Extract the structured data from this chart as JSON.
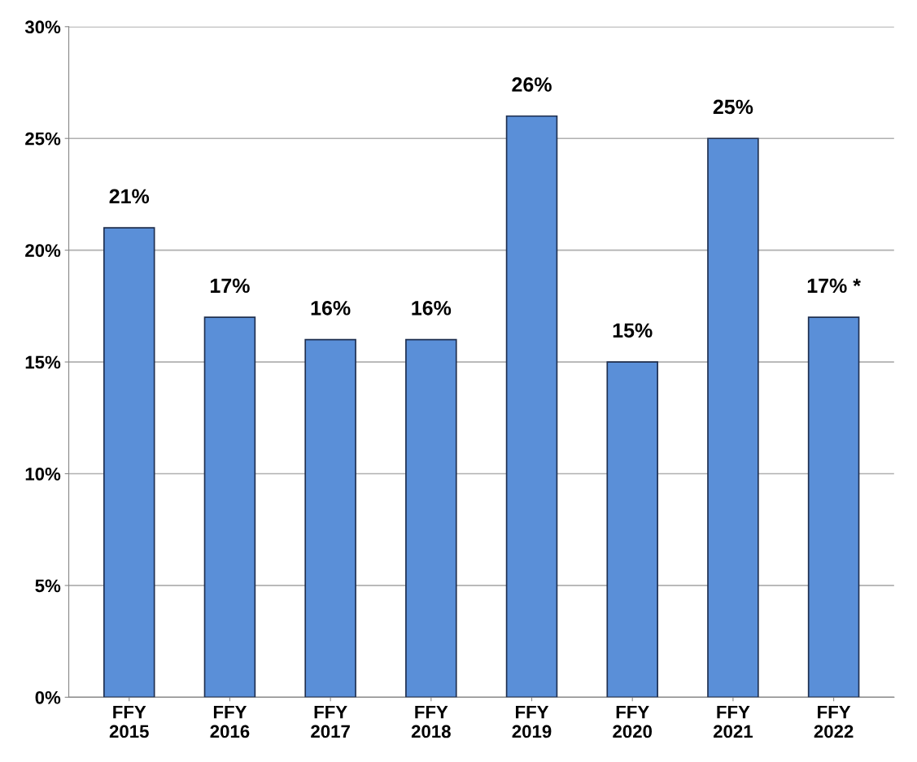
{
  "chart_data": {
    "type": "bar",
    "categories": [
      "FFY\n2015",
      "FFY\n2016",
      "FFY\n2017",
      "FFY\n2018",
      "FFY\n2019",
      "FFY\n2020",
      "FFY\n2021",
      "FFY\n2022"
    ],
    "values": [
      21,
      17,
      16,
      16,
      26,
      15,
      25,
      17
    ],
    "value_labels": [
      "21%",
      "17%",
      "16%",
      "16%",
      "26%",
      "15%",
      "25%",
      "17% *"
    ],
    "color": "#5a8fd8",
    "ylim": [
      0,
      30
    ],
    "yticks": [
      {
        "value": 0,
        "label": "0%"
      },
      {
        "value": 5,
        "label": "5%"
      },
      {
        "value": 10,
        "label": "10%"
      },
      {
        "value": 15,
        "label": "15%"
      },
      {
        "value": 20,
        "label": "20%"
      },
      {
        "value": 25,
        "label": "25%"
      },
      {
        "value": 30,
        "label": "30%"
      }
    ],
    "grid": "y"
  }
}
